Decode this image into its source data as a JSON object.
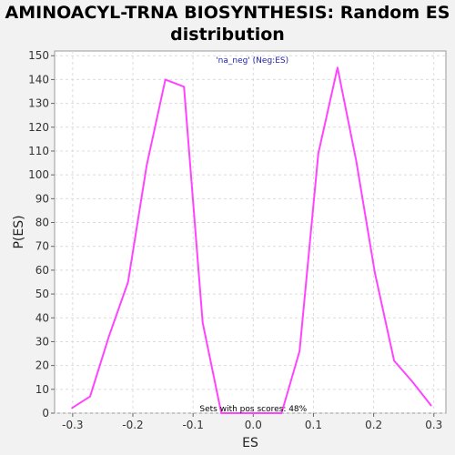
{
  "chart_data": {
    "type": "line",
    "title": "AMINOACYL-TRNA BIOSYNTHESIS: Random ES distribution",
    "xlabel": "ES",
    "ylabel": "P(ES)",
    "xlim": [
      -0.33,
      0.32
    ],
    "ylim": [
      0,
      152
    ],
    "x_ticks": [
      -0.3,
      -0.2,
      -0.1,
      0.0,
      0.1,
      0.2,
      0.3
    ],
    "x_tick_labels": [
      "-0.3",
      "-0.2",
      "-0.1",
      "0.0",
      "0.1",
      "0.2",
      "0.3"
    ],
    "y_ticks": [
      0,
      10,
      20,
      30,
      40,
      50,
      60,
      70,
      80,
      90,
      100,
      110,
      120,
      130,
      140,
      150
    ],
    "y_tick_labels": [
      "0",
      "10",
      "20",
      "30",
      "40",
      "50",
      "60",
      "70",
      "80",
      "90",
      "100",
      "110",
      "120",
      "130",
      "140",
      "150"
    ],
    "grid": true,
    "legend_placement": "top-center",
    "series": [
      {
        "name": "'na_neg' (Neg:ES)",
        "color": "#ff44ff",
        "x": [
          -0.302,
          -0.271,
          -0.24,
          -0.208,
          -0.177,
          -0.146,
          -0.115,
          -0.084,
          -0.053,
          -0.022,
          0.01,
          0.047,
          0.077,
          0.108,
          0.14,
          0.171,
          0.202,
          0.234,
          0.265,
          0.296
        ],
        "y": [
          2,
          7,
          32,
          55,
          104,
          140,
          137,
          38,
          0,
          0,
          0,
          0,
          26,
          109,
          145,
          106,
          59,
          22,
          13,
          3
        ]
      }
    ],
    "annotation": "Sets with pos scores: 48%"
  }
}
